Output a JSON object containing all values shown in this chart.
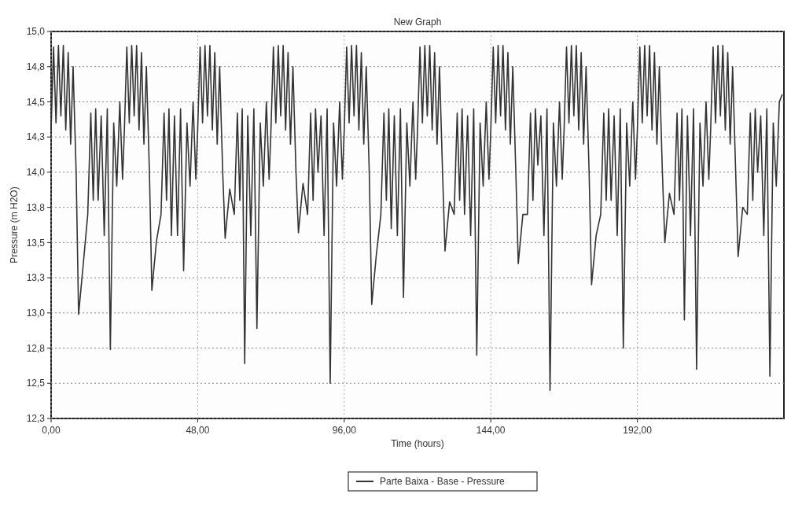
{
  "chart_data": {
    "type": "line",
    "title": "New Graph",
    "xlabel": "Time (hours)",
    "ylabel": "Pressure (m H2O)",
    "xlim": [
      0,
      240
    ],
    "xticks": [
      {
        "value": 0,
        "label": "0,00"
      },
      {
        "value": 48,
        "label": "48,00"
      },
      {
        "value": 96,
        "label": "96,00"
      },
      {
        "value": 144,
        "label": "144,00"
      },
      {
        "value": 192,
        "label": "192,00"
      }
    ],
    "ylim": [
      12.25,
      15
    ],
    "yticks": [
      {
        "value": 12.25,
        "label": "12,3"
      },
      {
        "value": 12.5,
        "label": "12,5"
      },
      {
        "value": 12.75,
        "label": "12,8"
      },
      {
        "value": 13,
        "label": "13,0"
      },
      {
        "value": 13.25,
        "label": "13,3"
      },
      {
        "value": 13.5,
        "label": "13,5"
      },
      {
        "value": 13.75,
        "label": "13,8"
      },
      {
        "value": 14,
        "label": "14,0"
      },
      {
        "value": 14.25,
        "label": "14,3"
      },
      {
        "value": 14.5,
        "label": "14,5"
      },
      {
        "value": 14.75,
        "label": "14,8"
      },
      {
        "value": 15,
        "label": "15,0"
      }
    ],
    "grid": true,
    "legend": "bottom",
    "line_style": "solid",
    "marker": "none",
    "series": [
      {
        "name": "Parte Baixa - Base - Pressure",
        "color": "#333333",
        "x": [
          0,
          0.8,
          1.6,
          2.4,
          3.2,
          4,
          4.8,
          5.6,
          6.4,
          7.2,
          8.2,
          9,
          10.5,
          12,
          13,
          13.8,
          14.6,
          15.4,
          16.4,
          17.4,
          18.4,
          19.4,
          20.5,
          21.5,
          22.5,
          23.4,
          24,
          24.8,
          25.6,
          26.4,
          27.2,
          28,
          28.8,
          29.6,
          30.4,
          31.2,
          32.2,
          33,
          34.5,
          36,
          37,
          37.8,
          38.6,
          39.4,
          40.4,
          41.4,
          42.4,
          43.4,
          44.5,
          45.5,
          46.5,
          47.4,
          48,
          48.8,
          49.6,
          50.4,
          51.2,
          52,
          52.8,
          53.6,
          54.4,
          55.2,
          56.2,
          57,
          58.5,
          60,
          61,
          61.8,
          62.6,
          63.4,
          64.4,
          65.4,
          66.4,
          67.4,
          68.5,
          69.5,
          70.5,
          71.4,
          72,
          72.8,
          73.6,
          74.4,
          75.2,
          76,
          76.8,
          77.6,
          78.4,
          79.2,
          80.2,
          81,
          82.5,
          84,
          85,
          85.8,
          86.6,
          87.4,
          88.4,
          89.4,
          90.4,
          91.4,
          92.5,
          93.5,
          94.5,
          95.4,
          96,
          96.8,
          97.6,
          98.4,
          99.2,
          100,
          100.8,
          101.6,
          102.4,
          103.2,
          104.2,
          105,
          106.5,
          108,
          109,
          109.8,
          110.6,
          111.4,
          112.4,
          113.4,
          114.4,
          115.4,
          116.5,
          117.5,
          118.5,
          119.4,
          120,
          120.8,
          121.6,
          122.4,
          123.2,
          124,
          124.8,
          125.6,
          126.4,
          127.2,
          128.2,
          129,
          130.5,
          132,
          133,
          133.8,
          134.6,
          135.4,
          136.4,
          137.4,
          138.4,
          139.4,
          140.5,
          141.5,
          142.5,
          143.4,
          144,
          144.8,
          145.6,
          146.4,
          147.2,
          148,
          148.8,
          149.6,
          150.4,
          151.2,
          152.2,
          153,
          154.5,
          156,
          157,
          157.8,
          158.6,
          159.4,
          160.4,
          161.4,
          162.4,
          163.4,
          164.5,
          165.5,
          166.5,
          167.4,
          168,
          168.8,
          169.6,
          170.4,
          171.2,
          172,
          172.8,
          173.6,
          174.4,
          175.2,
          176.2,
          177,
          178.5,
          180,
          181,
          181.8,
          182.6,
          183.4,
          184.4,
          185.4,
          186.4,
          187.4,
          188.5,
          189.5,
          190.5,
          191.4,
          192,
          192.8,
          193.6,
          194.4,
          195.2,
          196,
          196.8,
          197.6,
          198.4,
          199.2,
          200.2,
          201,
          202.5,
          204,
          205,
          205.8,
          206.6,
          207.4,
          208.4,
          209.4,
          210.4,
          211.4,
          212.5,
          213.5,
          214.5,
          215.4,
          216,
          216.8,
          217.6,
          218.4,
          219.2,
          220,
          220.8,
          221.6,
          222.4,
          223.2,
          224.2,
          225,
          226.5,
          228,
          229,
          229.8,
          230.6,
          231.4,
          232.4,
          233.4,
          234.4,
          235.4,
          236.5,
          237.5,
          238.5,
          239.4
        ],
        "values": [
          14.3,
          14.89,
          14.35,
          14.9,
          14.4,
          14.9,
          14.3,
          14.85,
          14.2,
          14.75,
          14.0,
          12.99,
          13.34,
          13.7,
          14.42,
          13.8,
          14.45,
          13.8,
          14.4,
          13.55,
          14.45,
          12.74,
          14.35,
          13.9,
          14.5,
          13.95,
          14.3,
          14.89,
          14.35,
          14.9,
          14.4,
          14.9,
          14.3,
          14.85,
          14.2,
          14.75,
          14.0,
          13.16,
          13.51,
          13.7,
          14.42,
          13.8,
          14.45,
          13.55,
          14.4,
          13.55,
          14.45,
          13.3,
          14.35,
          13.9,
          14.5,
          13.95,
          14.3,
          14.89,
          14.35,
          14.9,
          14.4,
          14.9,
          14.3,
          14.85,
          14.2,
          14.75,
          14.0,
          13.53,
          13.88,
          13.7,
          14.42,
          13.8,
          14.45,
          12.64,
          14.4,
          13.55,
          14.45,
          12.89,
          14.35,
          13.9,
          14.5,
          13.95,
          14.3,
          14.89,
          14.35,
          14.9,
          14.4,
          14.9,
          14.3,
          14.85,
          14.2,
          14.75,
          14.0,
          13.57,
          13.92,
          13.7,
          14.42,
          13.8,
          14.45,
          14.0,
          14.4,
          13.55,
          14.45,
          12.5,
          14.35,
          13.9,
          14.5,
          13.95,
          14.3,
          14.89,
          14.35,
          14.9,
          14.4,
          14.9,
          14.3,
          14.85,
          14.2,
          14.75,
          14.0,
          13.06,
          13.41,
          13.7,
          14.42,
          13.8,
          14.45,
          13.6,
          14.4,
          13.55,
          14.45,
          13.11,
          14.35,
          13.9,
          14.5,
          13.95,
          14.3,
          14.89,
          14.35,
          14.9,
          14.4,
          14.9,
          14.3,
          14.85,
          14.2,
          14.75,
          14.0,
          13.44,
          13.79,
          13.7,
          14.42,
          13.8,
          14.45,
          13.7,
          14.4,
          13.55,
          14.45,
          12.7,
          14.35,
          13.9,
          14.5,
          13.95,
          14.3,
          14.89,
          14.35,
          14.9,
          14.4,
          14.9,
          14.3,
          14.85,
          14.2,
          14.75,
          14.0,
          13.35,
          13.7,
          13.7,
          14.42,
          13.8,
          14.45,
          14.05,
          14.4,
          13.55,
          14.45,
          12.45,
          14.35,
          13.9,
          14.5,
          13.95,
          14.3,
          14.89,
          14.35,
          14.9,
          14.4,
          14.9,
          14.3,
          14.85,
          14.2,
          14.75,
          14.0,
          13.2,
          13.55,
          13.7,
          14.42,
          13.8,
          14.45,
          13.8,
          14.4,
          13.55,
          14.45,
          12.75,
          14.35,
          13.9,
          14.5,
          13.95,
          14.3,
          14.89,
          14.35,
          14.9,
          14.4,
          14.9,
          14.3,
          14.85,
          14.2,
          14.75,
          14.0,
          13.5,
          13.85,
          13.7,
          14.42,
          13.8,
          14.45,
          12.95,
          14.4,
          13.55,
          14.45,
          12.6,
          14.35,
          13.9,
          14.5,
          13.95,
          14.3,
          14.89,
          14.35,
          14.9,
          14.4,
          14.9,
          14.3,
          14.85,
          14.2,
          14.75,
          14.0,
          13.4,
          13.75,
          13.7,
          14.42,
          13.8,
          14.45,
          14.0,
          14.4,
          13.55,
          14.45,
          12.55,
          14.35,
          13.9,
          14.5,
          14.55
        ]
      }
    ]
  }
}
